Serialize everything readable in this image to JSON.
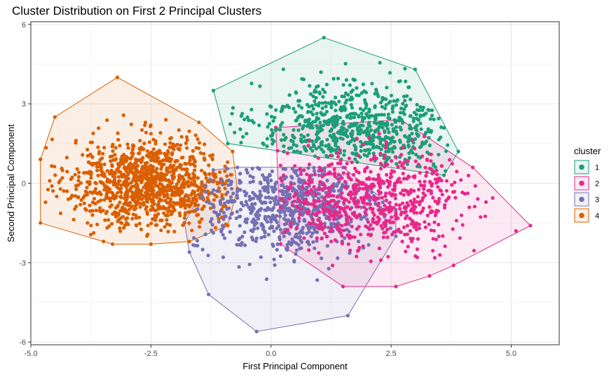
{
  "chart_data": {
    "type": "scatter",
    "title": "Cluster Distribution on First 2 Principal Clusters",
    "xlabel": "First Principal Component",
    "ylabel": "Second Principal Component",
    "xlim": [
      -5.0,
      6.0
    ],
    "ylim": [
      -6.1,
      6.1
    ],
    "x_ticks": [
      -5.0,
      -2.5,
      0.0,
      2.5,
      5.0
    ],
    "x_tick_labels": [
      "-5.0",
      "-2.5",
      "0.0",
      "2.5",
      "5.0"
    ],
    "y_ticks": [
      -6,
      -3,
      0,
      3,
      6
    ],
    "y_tick_labels": [
      "-6",
      "-3",
      "0",
      "3",
      "6"
    ],
    "grid": true,
    "legend": {
      "title": "cluster",
      "position": "right"
    },
    "series": [
      {
        "name": "1",
        "color": "#1b9e77",
        "center": [
          1.7,
          2.0
        ],
        "spread": [
          1.1,
          0.9
        ],
        "approx_points": 700,
        "hull": [
          [
            1.1,
            5.5
          ],
          [
            3.0,
            4.3
          ],
          [
            3.9,
            1.2
          ],
          [
            3.6,
            0.3
          ],
          [
            1.2,
            1.3
          ],
          [
            -0.9,
            1.5
          ],
          [
            -1.2,
            3.5
          ]
        ]
      },
      {
        "name": "2",
        "color": "#e7298a",
        "center": [
          2.1,
          -0.6
        ],
        "spread": [
          1.0,
          0.9
        ],
        "approx_points": 700,
        "hull": [
          [
            0.1,
            2.1
          ],
          [
            2.7,
            2.4
          ],
          [
            4.2,
            0.6
          ],
          [
            5.4,
            -1.6
          ],
          [
            5.1,
            -1.8
          ],
          [
            3.8,
            -3.1
          ],
          [
            3.3,
            -3.5
          ],
          [
            2.6,
            -3.9
          ],
          [
            1.5,
            -3.9
          ],
          [
            0.2,
            -2.3
          ]
        ]
      },
      {
        "name": "3",
        "color": "#7570b3",
        "center": [
          0.4,
          -0.9
        ],
        "spread": [
          1.0,
          0.9
        ],
        "approx_points": 700,
        "hull": [
          [
            -1.2,
            0.5
          ],
          [
            -0.7,
            0.6
          ],
          [
            1.5,
            0.6
          ],
          [
            2.6,
            -1.0
          ],
          [
            2.6,
            -2.0
          ],
          [
            1.6,
            -5.0
          ],
          [
            -0.3,
            -5.6
          ],
          [
            -1.3,
            -4.2
          ],
          [
            -1.7,
            -2.6
          ],
          [
            -1.8,
            -1.5
          ]
        ]
      },
      {
        "name": "4",
        "color": "#d95f02",
        "center": [
          -2.5,
          0.0
        ],
        "spread": [
          0.85,
          0.85
        ],
        "approx_points": 1100,
        "hull": [
          [
            -3.2,
            4.0
          ],
          [
            -1.5,
            2.3
          ],
          [
            -0.8,
            1.2
          ],
          [
            -0.7,
            -0.2
          ],
          [
            -0.9,
            -1.6
          ],
          [
            -1.7,
            -2.2
          ],
          [
            -2.5,
            -2.3
          ],
          [
            -3.3,
            -2.3
          ],
          [
            -4.8,
            -1.5
          ],
          [
            -4.5,
            2.5
          ],
          [
            -4.8,
            0.9
          ]
        ]
      }
    ]
  }
}
